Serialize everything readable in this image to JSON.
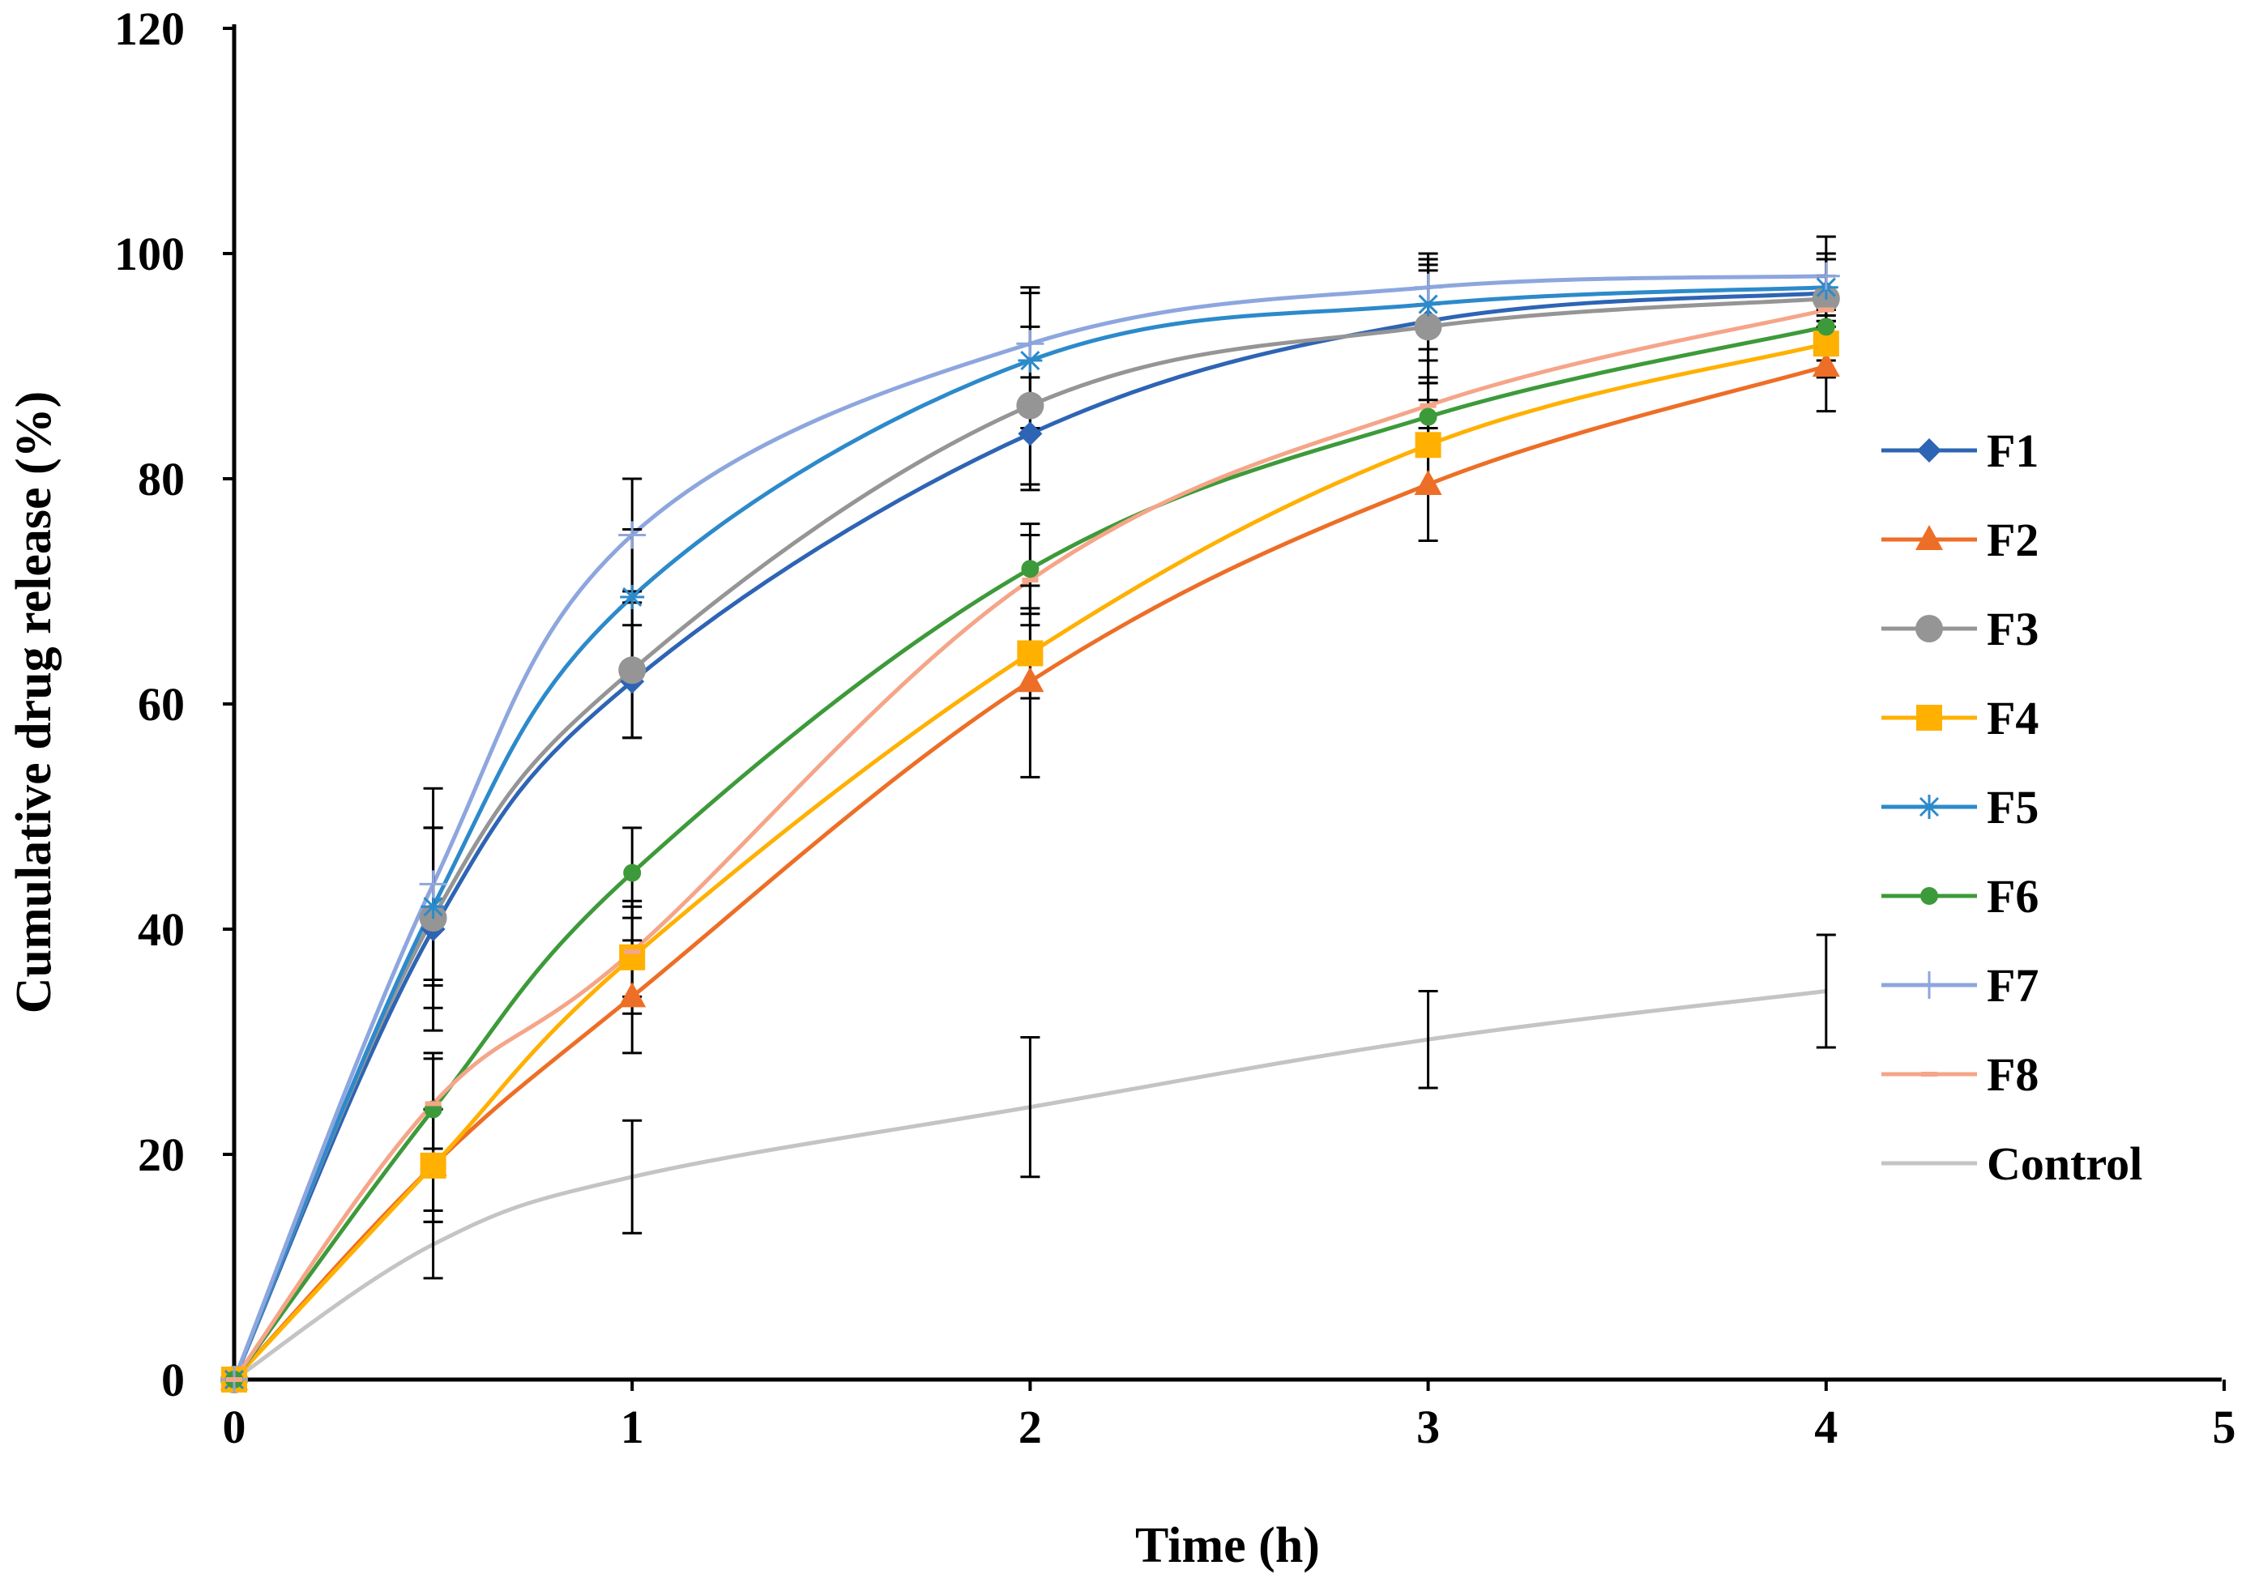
{
  "chart_data": {
    "type": "line",
    "title": "",
    "xlabel": "Time (h)",
    "ylabel": "Cumulative drug release (%)",
    "xlim": [
      0,
      5
    ],
    "ylim": [
      0,
      120
    ],
    "xticks": [
      "0",
      "1",
      "2",
      "3",
      "4",
      "5"
    ],
    "yticks": [
      "0",
      "20",
      "40",
      "60",
      "80",
      "100",
      "120"
    ],
    "grid": false,
    "legend_position": "right",
    "x": [
      0,
      0.5,
      1,
      2,
      3,
      4
    ],
    "series": [
      {
        "name": "F1",
        "color": "#2E64B4",
        "marker": "diamond",
        "values": [
          0,
          40,
          62,
          84,
          94,
          96.5
        ],
        "errors": [
          0,
          9,
          5,
          5,
          5,
          3
        ]
      },
      {
        "name": "F2",
        "color": "#ED6E26",
        "marker": "triangle",
        "values": [
          0,
          19,
          34,
          62,
          79.5,
          90
        ],
        "errors": [
          0,
          5,
          5,
          8.5,
          5,
          4
        ]
      },
      {
        "name": "F3",
        "color": "#959595",
        "marker": "circle",
        "values": [
          0,
          41,
          63,
          86.5,
          93.5,
          96
        ],
        "errors": [
          0,
          8,
          6,
          7,
          5,
          3.5
        ]
      },
      {
        "name": "F4",
        "color": "#FFB000",
        "marker": "square",
        "values": [
          0,
          19,
          37.5,
          64.5,
          83,
          92
        ],
        "errors": [
          0,
          5,
          5,
          4,
          4,
          3
        ]
      },
      {
        "name": "F5",
        "color": "#2C8ACB",
        "marker": "asterisk",
        "values": [
          0,
          42,
          69.5,
          90.5,
          95.5,
          97
        ],
        "errors": [
          0,
          7,
          6,
          6,
          4,
          3
        ]
      },
      {
        "name": "F6",
        "color": "#3D9A3A",
        "marker": "dot",
        "values": [
          0,
          24,
          45,
          72,
          85.5,
          93.5
        ],
        "errors": [
          0,
          5,
          4,
          4,
          3,
          3
        ]
      },
      {
        "name": "F7",
        "color": "#8DA6DE",
        "marker": "plus",
        "values": [
          0,
          44,
          75,
          92,
          97,
          98
        ],
        "errors": [
          0,
          8.5,
          5,
          5,
          3,
          3.5
        ]
      },
      {
        "name": "F8",
        "color": "#F5A588",
        "marker": "dash",
        "values": [
          0,
          24.5,
          38,
          71,
          86.5,
          95
        ],
        "errors": [
          0,
          4,
          4,
          4,
          4,
          3
        ]
      },
      {
        "name": "Control",
        "color": "#C4C4C4",
        "marker": "none",
        "values": [
          0,
          12,
          18,
          24.2,
          30.2,
          34.5
        ],
        "errors": [
          0,
          3,
          5,
          6.2,
          4.3,
          5
        ]
      }
    ]
  }
}
